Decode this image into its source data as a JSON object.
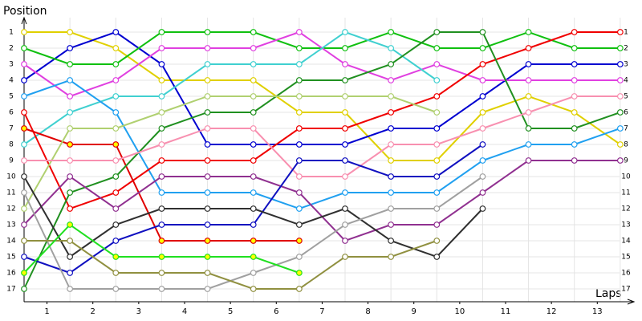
{
  "chart_data": {
    "type": "line",
    "ylabel": "Position",
    "xlabel": "Laps",
    "x": [
      0,
      1,
      2,
      3,
      4,
      5,
      6,
      7,
      8,
      9,
      10,
      11,
      12,
      13
    ],
    "xlim": [
      0,
      13.3
    ],
    "xticks": [
      {
        "value": 0.5,
        "label": "1"
      },
      {
        "value": 1.5,
        "label": "2"
      },
      {
        "value": 2.5,
        "label": "3"
      },
      {
        "value": 3.5,
        "label": "4"
      },
      {
        "value": 4.5,
        "label": "5"
      },
      {
        "value": 5.5,
        "label": "6"
      },
      {
        "value": 6.5,
        "label": "7"
      },
      {
        "value": 7.5,
        "label": "8"
      },
      {
        "value": 8.5,
        "label": "9"
      },
      {
        "value": 9.5,
        "label": "10"
      },
      {
        "value": 10.5,
        "label": "11"
      },
      {
        "value": 11.5,
        "label": "12"
      },
      {
        "value": 12.5,
        "label": "13"
      }
    ],
    "ylim": [
      17.8,
      0.1
    ],
    "yticks": [
      1,
      2,
      3,
      4,
      5,
      6,
      7,
      8,
      9,
      10,
      11,
      12,
      13,
      14,
      15,
      16,
      17
    ],
    "grid": true,
    "series": [
      {
        "color": "#e0d000",
        "marker_fill": "#ffffff",
        "values": [
          1,
          1,
          2,
          4,
          4,
          4,
          6,
          6,
          9,
          9,
          6,
          5,
          6,
          8
        ]
      },
      {
        "color": "#0000d0",
        "marker_fill": "#ffffff",
        "values": [
          4,
          2,
          1,
          3,
          8,
          8,
          8,
          8,
          7,
          7,
          5,
          3,
          3,
          3
        ]
      },
      {
        "color": "#10c010",
        "marker_fill": "#ffffff",
        "values": [
          2,
          3,
          3,
          1,
          1,
          1,
          2,
          2,
          1,
          2,
          2,
          1,
          2,
          2
        ]
      },
      {
        "color": "#e040e0",
        "marker_fill": "#ffffff",
        "values": [
          3,
          5,
          4,
          2,
          2,
          2,
          1,
          3,
          4,
          3,
          4,
          4,
          4,
          4
        ]
      },
      {
        "color": "#40d0d0",
        "marker_fill": "#ffffff",
        "values": [
          8,
          6,
          5,
          5,
          3,
          3,
          3,
          1,
          2,
          4,
          null,
          null,
          null,
          null
        ]
      },
      {
        "color": "#20a0f0",
        "marker_fill": "#ffffff",
        "values": [
          5,
          4,
          6,
          11,
          11,
          11,
          12,
          11,
          11,
          11,
          9,
          8,
          8,
          7
        ]
      },
      {
        "color": "#f00000",
        "marker_fill": "#ffffff",
        "values": [
          6,
          12,
          11,
          9,
          9,
          9,
          7,
          7,
          6,
          5,
          3,
          2,
          1,
          1
        ]
      },
      {
        "color": "#e00000",
        "marker_fill": "#ffff00",
        "values": [
          7,
          8,
          8,
          14,
          14,
          14,
          14,
          null,
          null,
          null,
          null,
          null,
          null,
          null
        ]
      },
      {
        "color": "#209020",
        "marker_fill": "#ffffff",
        "values": [
          17,
          11,
          10,
          7,
          6,
          6,
          4,
          4,
          3,
          1,
          1,
          7,
          7,
          6
        ]
      },
      {
        "color": "#b0d070",
        "marker_fill": "#ffffff",
        "values": [
          12,
          7,
          7,
          6,
          5,
          5,
          5,
          5,
          5,
          6,
          null,
          null,
          null,
          null
        ]
      },
      {
        "color": "#f890b0",
        "marker_fill": "#ffffff",
        "values": [
          9,
          9,
          9,
          8,
          7,
          7,
          10,
          10,
          8,
          8,
          7,
          6,
          5,
          5
        ]
      },
      {
        "color": "#903090",
        "marker_fill": "#ffffff",
        "values": [
          13,
          10,
          12,
          10,
          10,
          10,
          11,
          14,
          13,
          13,
          11,
          9,
          9,
          9
        ]
      },
      {
        "color": "#1010c0",
        "marker_fill": "#ffffff",
        "values": [
          15,
          16,
          14,
          13,
          13,
          13,
          9,
          9,
          10,
          10,
          8,
          null,
          null,
          null
        ]
      },
      {
        "color": "#303030",
        "marker_fill": "#ffffff",
        "values": [
          10,
          15,
          13,
          12,
          12,
          12,
          13,
          12,
          14,
          15,
          12,
          null,
          null,
          null
        ]
      },
      {
        "color": "#a0a0a0",
        "marker_fill": "#ffffff",
        "values": [
          11,
          17,
          17,
          17,
          17,
          16,
          15,
          13,
          12,
          12,
          10,
          null,
          null,
          null
        ]
      },
      {
        "color": "#909040",
        "marker_fill": "#ffffff",
        "values": [
          14,
          14,
          16,
          16,
          16,
          17,
          17,
          15,
          15,
          14,
          null,
          null,
          null,
          null
        ]
      },
      {
        "color": "#20e020",
        "marker_fill": "#ffff00",
        "values": [
          16,
          13,
          15,
          15,
          15,
          15,
          16,
          null,
          null,
          null,
          null,
          null,
          null,
          null
        ]
      }
    ]
  }
}
